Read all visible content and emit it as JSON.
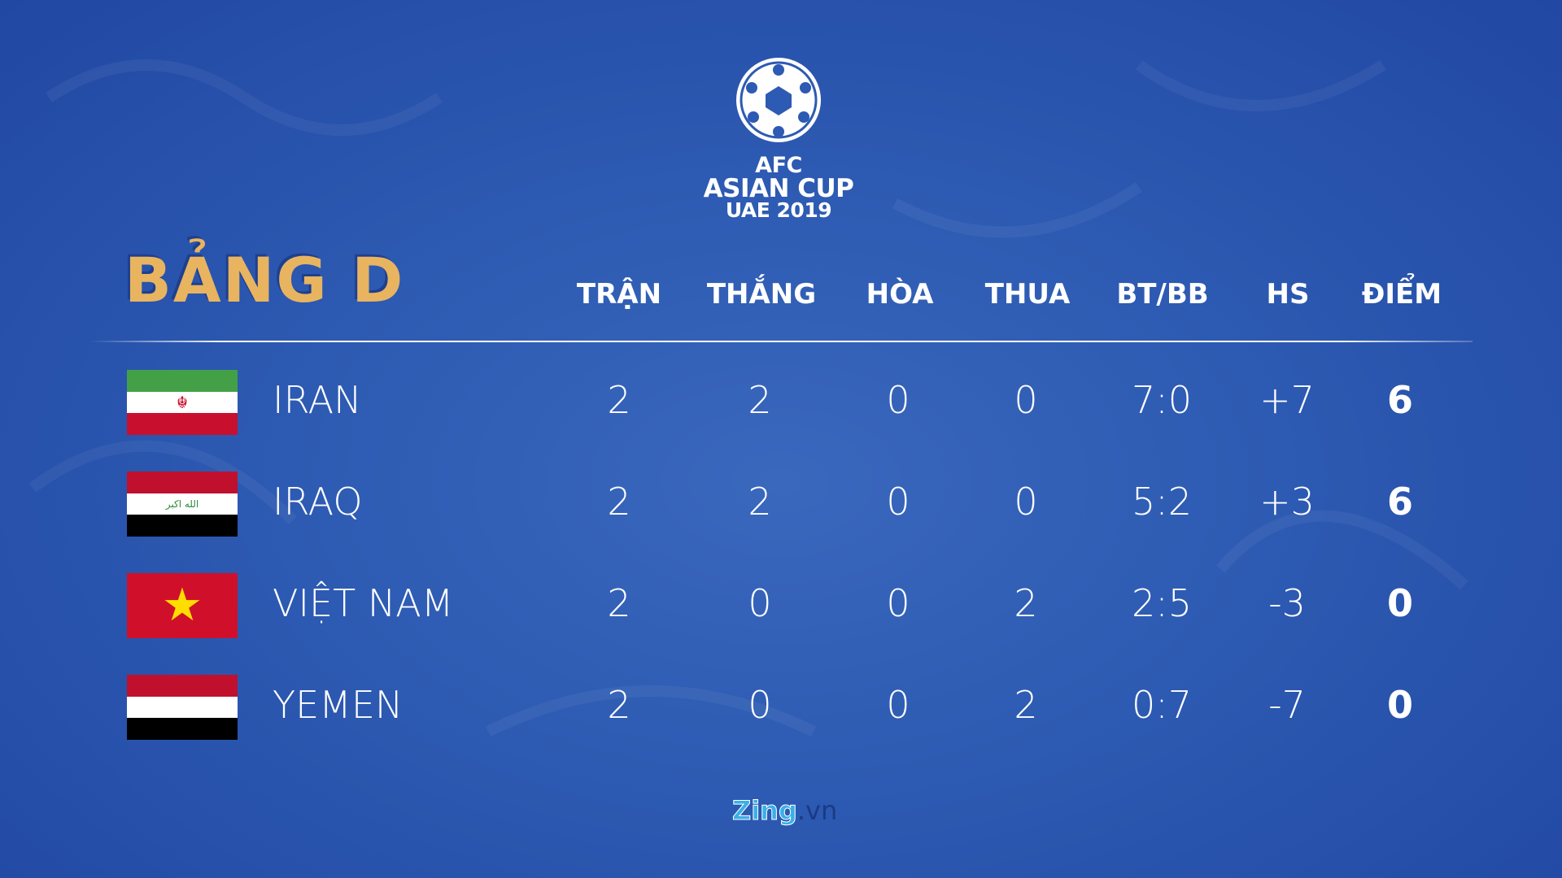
{
  "logo": {
    "line1": "AFC",
    "line2": "ASIAN CUP",
    "line3": "UAE 2019"
  },
  "title": "BẢNG D",
  "headers": [
    "TRẬN",
    "THẮNG",
    "HÒA",
    "THUA",
    "BT/BB",
    "HS",
    "ĐIỂM"
  ],
  "rows": [
    {
      "team": "IRAN",
      "flag": "iran-flag",
      "cells": [
        "2",
        "2",
        "0",
        "0",
        "7:0",
        "+7",
        "6"
      ]
    },
    {
      "team": "IRAQ",
      "flag": "iraq-flag",
      "cells": [
        "2",
        "2",
        "0",
        "0",
        "5:2",
        "+3",
        "6"
      ]
    },
    {
      "team": "VIỆT NAM",
      "flag": "vietnam-flag",
      "cells": [
        "2",
        "0",
        "0",
        "2",
        "2:5",
        "-3",
        "0"
      ]
    },
    {
      "team": "YEMEN",
      "flag": "yemen-flag",
      "cells": [
        "2",
        "0",
        "0",
        "2",
        "0:7",
        "-7",
        "0"
      ]
    }
  ],
  "footer": {
    "brand": "Zing",
    "suffix": ".vn"
  },
  "colors": {
    "background": "#2d5ab2",
    "title": "#e8b460"
  }
}
